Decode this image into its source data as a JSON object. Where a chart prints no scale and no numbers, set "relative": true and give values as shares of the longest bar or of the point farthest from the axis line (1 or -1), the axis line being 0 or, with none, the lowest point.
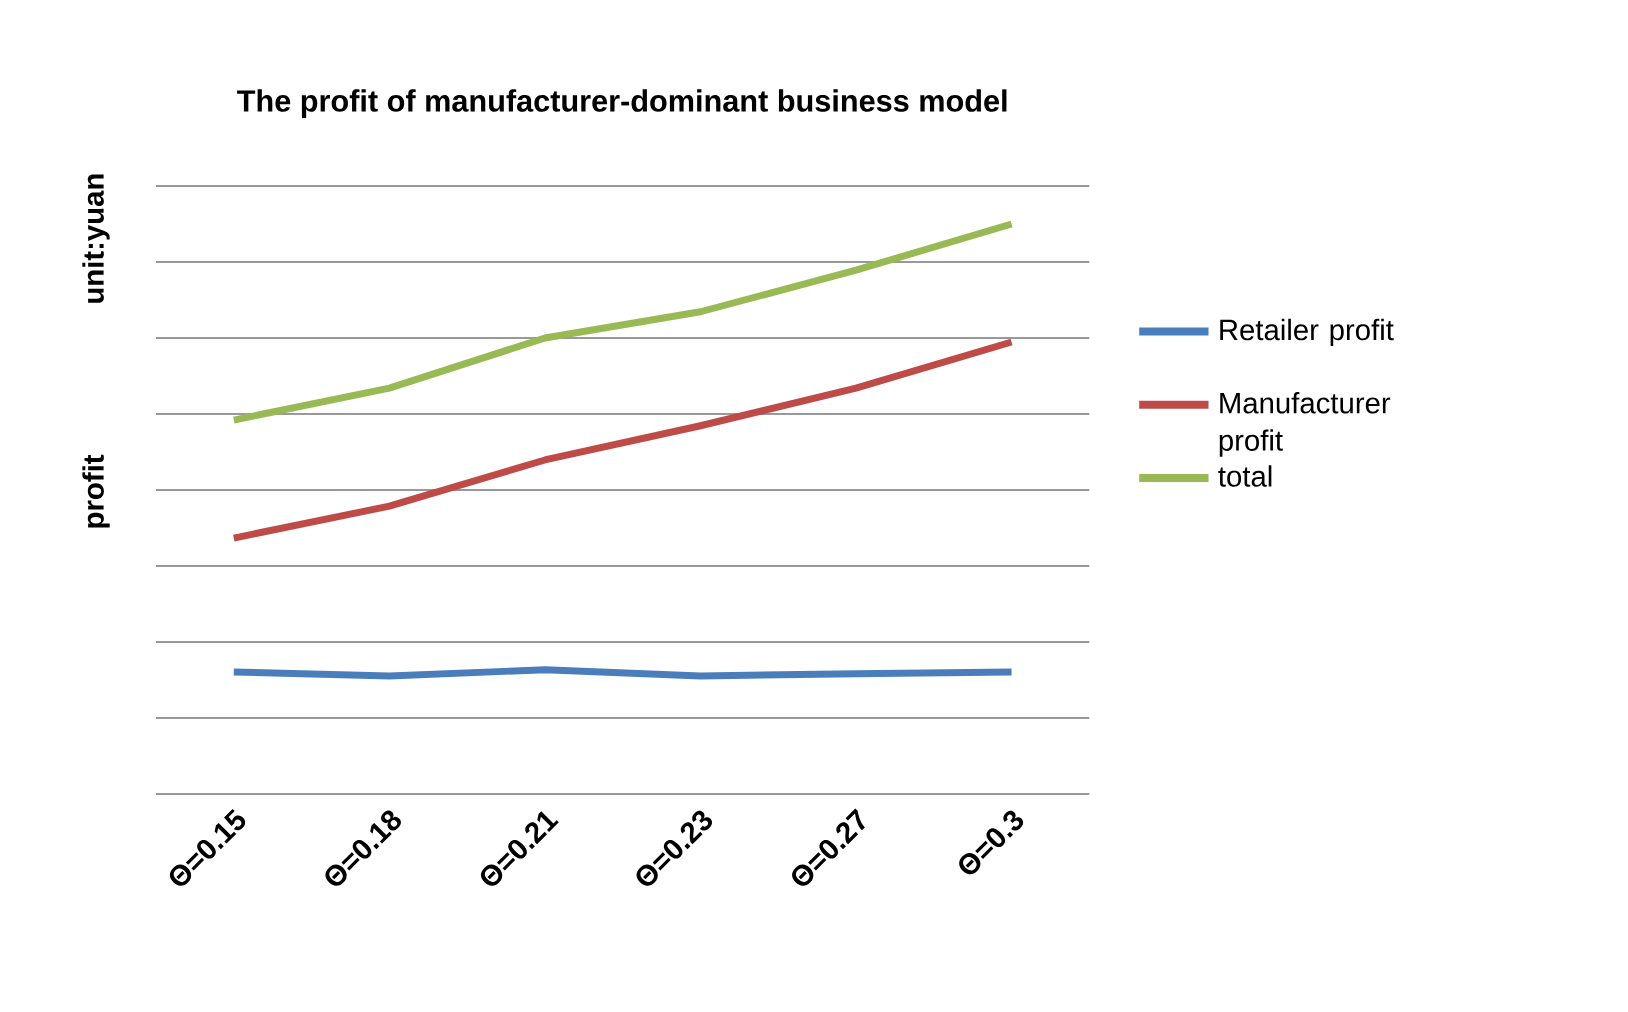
{
  "chart_data": {
    "type": "line",
    "title": "The profit of manufacturer-dominant business model",
    "ylabel": "profit",
    "annotations": [
      "unit:yuan"
    ],
    "relative": true,
    "grid": "y",
    "legend": "right",
    "line_style": "solid",
    "marker": "none",
    "categories": [
      "Θ=0.15",
      "Θ=0.18",
      "Θ=0.21",
      "Θ=0.23",
      "Θ=0.27",
      "Θ=0.3"
    ],
    "series": [
      {
        "name": "Retailer profit",
        "color": "#4a7ebb",
        "values": [
          0.214,
          0.207,
          0.218,
          0.207,
          0.211,
          0.214
        ]
      },
      {
        "name": "Manufacturer profit",
        "color": "#be4b48",
        "values": [
          0.449,
          0.505,
          0.586,
          0.646,
          0.712,
          0.793
        ]
      },
      {
        "name": "total",
        "color": "#98b954",
        "values": [
          0.656,
          0.712,
          0.8,
          0.846,
          0.919,
          1.0
        ]
      }
    ]
  }
}
